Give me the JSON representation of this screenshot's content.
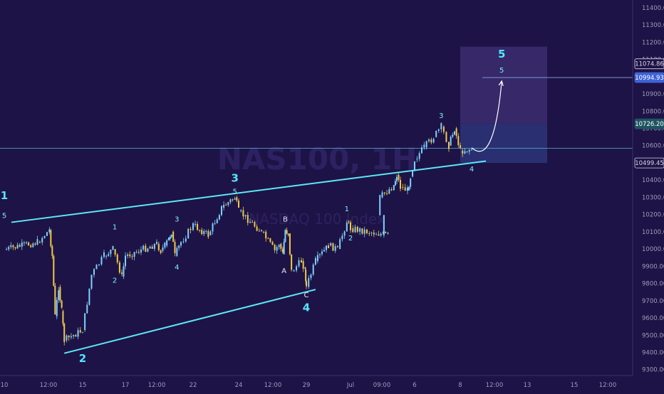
{
  "chart_data": {
    "type": "line",
    "watermark": {
      "symbol": "NAS100, 1H",
      "name": "NASDAQ 100 Index"
    },
    "y_axis": {
      "ticks": [
        11400,
        11300,
        11200,
        11100,
        11000,
        10900,
        10800,
        10700,
        10600,
        10500,
        10400,
        10300,
        10200,
        10100,
        10000,
        9900,
        9800,
        9700,
        9600,
        9500,
        9400,
        9300
      ],
      "tick_labels": [
        "11400.00",
        "11300.00",
        "11200.00",
        "11100.00",
        "11000.00",
        "10900.00",
        "10800.00",
        "10700.00",
        "10600.00",
        "10500.00",
        "10400.00",
        "10300.00",
        "10200.00",
        "10100.00",
        "10000.00",
        "9900.00",
        "9800.00",
        "9700.00",
        "9600.00",
        "9500.00",
        "9400.00",
        "9300.00"
      ],
      "range": [
        9270,
        11445
      ]
    },
    "x_axis": {
      "labels": [
        "10",
        "12:00",
        "15",
        "17",
        "12:00",
        "22",
        "24",
        "12:00",
        "29",
        "Jul",
        "09:00",
        "6",
        "8",
        "12:00",
        "13",
        "15",
        "12:00"
      ]
    },
    "price_tags": [
      {
        "value": 11074.86,
        "label": "11074.86",
        "style": "outline"
      },
      {
        "value": 10994.93,
        "label": "10994.93",
        "style": "blue"
      },
      {
        "value": 10726.2,
        "label": "10726.20",
        "style": "teal"
      },
      {
        "value": 10499.45,
        "label": "10499.45",
        "style": "outline"
      }
    ],
    "horizontal_lines": [
      10585,
      10994.93
    ],
    "price_path": [
      {
        "x": "10",
        "y": 9995
      },
      {
        "x": "10 09:00",
        "y": 10040
      },
      {
        "x": "10 15:00",
        "y": 10110
      },
      {
        "x": "11 00:00",
        "y": 9960
      },
      {
        "x": "11 09:00",
        "y": 9610
      },
      {
        "x": "11 20:00",
        "y": 9780
      },
      {
        "x": "12 06:00",
        "y": 9640
      },
      {
        "x": "12 14:00",
        "y": 9470
      },
      {
        "x": "15",
        "y": 9530
      },
      {
        "x": "15 10:00",
        "y": 9850
      },
      {
        "x": "16 00:00",
        "y": 9960
      },
      {
        "x": "16 10:00",
        "y": 10000
      },
      {
        "x": "16 20:00",
        "y": 9840
      },
      {
        "x": "17",
        "y": 9960
      },
      {
        "x": "17 12:00",
        "y": 10030
      },
      {
        "x": "18 00:00",
        "y": 9990
      },
      {
        "x": "18 12:00",
        "y": 10020
      },
      {
        "x": "19 00:00",
        "y": 10060
      },
      {
        "x": "19 08:00",
        "y": 10100
      },
      {
        "x": "19 18:00",
        "y": 9960
      },
      {
        "x": "20 12:00",
        "y": 10040
      },
      {
        "x": "22",
        "y": 10140
      },
      {
        "x": "22 16:00",
        "y": 10080
      },
      {
        "x": "23 06:00",
        "y": 10240
      },
      {
        "x": "23 20:00",
        "y": 10300
      },
      {
        "x": "24",
        "y": 10220
      },
      {
        "x": "24 08:00",
        "y": 10100
      },
      {
        "x": "24 18:00",
        "y": 9990
      },
      {
        "x": "25 08:00",
        "y": 10030
      },
      {
        "x": "25 20:00",
        "y": 9970
      },
      {
        "x": "26 04:00",
        "y": 10110
      },
      {
        "x": "26 14:00",
        "y": 10090
      },
      {
        "x": "27 00:00",
        "y": 9870
      },
      {
        "x": "28 08:00",
        "y": 9930
      },
      {
        "x": "28 20:00",
        "y": 9880
      },
      {
        "x": "29",
        "y": 9780
      },
      {
        "x": "29 10:00",
        "y": 9930
      },
      {
        "x": "30 00:00",
        "y": 10020
      },
      {
        "x": "30 10:00",
        "y": 10000
      },
      {
        "x": "30 20:00",
        "y": 10160
      },
      {
        "x": "Jul",
        "y": 10120
      },
      {
        "x": "Jul 2 06:00",
        "y": 10080
      },
      {
        "x": "Jul 09:00",
        "y": 10300
      },
      {
        "x": "Jul 3 02:00",
        "y": 10370
      },
      {
        "x": "Jul 3 12:00",
        "y": 10430
      },
      {
        "x": "Jul 4 00:00",
        "y": 10360
      },
      {
        "x": "Jul 5 00:00",
        "y": 10340
      },
      {
        "x": "Jul 5 10:00",
        "y": 10420
      },
      {
        "x": "6",
        "y": 10520
      },
      {
        "x": "6 10:00",
        "y": 10590
      },
      {
        "x": "6 20:00",
        "y": 10650
      },
      {
        "x": "7 04:00",
        "y": 10710
      },
      {
        "x": "7 12:00",
        "y": 10600
      },
      {
        "x": "7 18:00",
        "y": 10700
      },
      {
        "x": "8",
        "y": 10570
      },
      {
        "x": "8 04:00",
        "y": 10580
      }
    ],
    "trendlines": [
      {
        "name": "upper",
        "from": {
          "x": "10",
          "y": 10155
        },
        "to": {
          "x": "8 04:00",
          "y": 10510
        }
      },
      {
        "name": "lower",
        "from": {
          "x": "12 14:00",
          "y": 9395
        },
        "to": {
          "x": "29 10:00",
          "y": 9765
        }
      }
    ],
    "projection": {
      "path": [
        {
          "x": "8 04:00",
          "y": 10588
        },
        {
          "x": "8 10:00",
          "y": 10500
        },
        {
          "x": "8 22:00",
          "y": 10700
        },
        {
          "x": "9 12:00",
          "y": 10975
        }
      ],
      "box_upper": [
        10726.2,
        11174
      ],
      "box_lower": [
        10499.45,
        10726.2
      ]
    },
    "wave_labels": [
      {
        "text": "1",
        "x": "10",
        "y": 10290,
        "size": "big"
      },
      {
        "text": "5",
        "x": "10",
        "y": 10180,
        "size": "small"
      },
      {
        "text": "2",
        "x": "15",
        "y": 9345,
        "size": "big"
      },
      {
        "text": "1",
        "x": "16 12:00",
        "y": 10115,
        "size": "small"
      },
      {
        "text": "2",
        "x": "16 12:00",
        "y": 9805,
        "size": "small"
      },
      {
        "text": "3",
        "x": "20 00:00",
        "y": 10160,
        "size": "small"
      },
      {
        "text": "4",
        "x": "20 00:00",
        "y": 9880,
        "size": "small"
      },
      {
        "text": "3",
        "x": "23 20:00",
        "y": 10390,
        "size": "big"
      },
      {
        "text": "5",
        "x": "23 20:00",
        "y": 10320,
        "size": "small"
      },
      {
        "text": "B",
        "x": "26 04:00",
        "y": 10160,
        "size": "small-white"
      },
      {
        "text": "A",
        "x": "26 00:00",
        "y": 9860,
        "size": "small-white"
      },
      {
        "text": "C",
        "x": "29",
        "y": 9720,
        "size": "small-white"
      },
      {
        "text": "4",
        "x": "29",
        "y": 9640,
        "size": "big"
      },
      {
        "text": "1",
        "x": "30 20:00",
        "y": 10220,
        "size": "small"
      },
      {
        "text": "2",
        "x": "Jul",
        "y": 10050,
        "size": "small"
      },
      {
        "text": "3",
        "x": "7 04:00",
        "y": 10760,
        "size": "small"
      },
      {
        "text": "4",
        "x": "8 04:00",
        "y": 10450,
        "size": "small"
      },
      {
        "text": "5",
        "x": "9 12:00",
        "y": 11110,
        "size": "big"
      },
      {
        "text": "5",
        "x": "9 12:00",
        "y": 11025,
        "size": "small"
      }
    ],
    "colors": {
      "background": "#1e1346",
      "line": "#5be8f5",
      "up": "#7fd0ff",
      "down": "#f0c94a",
      "label": "#54e6ff",
      "axis_text": "#9e9bb5"
    },
    "grid": false,
    "legend": "none"
  }
}
